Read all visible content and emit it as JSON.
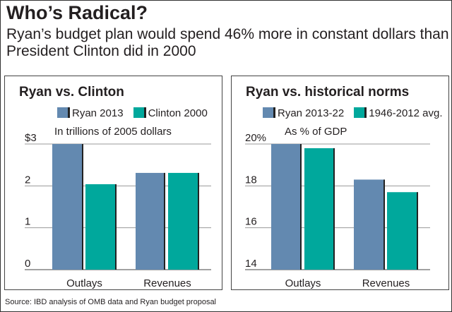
{
  "title": "Who’s Radical?",
  "subtitle": "Ryan’s budget plan would spend 46% more in constant dollars than President Clinton did in 2000",
  "source": "Source: IBD analysis of OMB data and Ryan budget proposal",
  "colors": {
    "series1": "#6389b0",
    "series2": "#00a89c"
  },
  "chart_data": [
    {
      "type": "bar",
      "title": "Ryan vs. Clinton",
      "ylabel": "In trillions of 2005 dollars",
      "categories": [
        "Outlays",
        "Revenues"
      ],
      "series": [
        {
          "name": "Ryan 2013",
          "values": [
            3.0,
            2.31
          ]
        },
        {
          "name": "Clinton 2000",
          "values": [
            2.04,
            2.31
          ]
        }
      ],
      "ylim": [
        0,
        3
      ],
      "yticks": [
        0,
        1,
        2,
        3
      ],
      "ytick_labels": [
        "0",
        "1",
        "2",
        "$3"
      ],
      "grid": true
    },
    {
      "type": "bar",
      "title": "Ryan vs. historical norms",
      "ylabel": "As % of GDP",
      "categories": [
        "Outlays",
        "Revenues"
      ],
      "series": [
        {
          "name": "Ryan 2013-22",
          "values": [
            20.0,
            18.3
          ]
        },
        {
          "name": "1946-2012 avg.",
          "values": [
            19.8,
            17.7
          ]
        }
      ],
      "ylim": [
        14,
        20
      ],
      "yticks": [
        14,
        16,
        18,
        20
      ],
      "ytick_labels": [
        "14",
        "16",
        "18",
        "20%"
      ],
      "grid": true
    }
  ]
}
